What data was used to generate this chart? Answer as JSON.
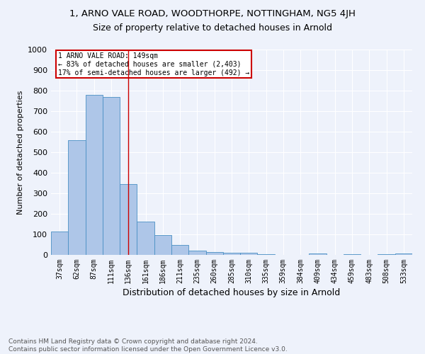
{
  "title1": "1, ARNO VALE ROAD, WOODTHORPE, NOTTINGHAM, NG5 4JH",
  "title2": "Size of property relative to detached houses in Arnold",
  "xlabel": "Distribution of detached houses by size in Arnold",
  "ylabel": "Number of detached properties",
  "footer1": "Contains HM Land Registry data © Crown copyright and database right 2024.",
  "footer2": "Contains public sector information licensed under the Open Government Licence v3.0.",
  "annotation_line1": "1 ARNO VALE ROAD: 149sqm",
  "annotation_line2": "← 83% of detached houses are smaller (2,403)",
  "annotation_line3": "17% of semi-detached houses are larger (492) →",
  "bar_labels": [
    "37sqm",
    "62sqm",
    "87sqm",
    "111sqm",
    "136sqm",
    "161sqm",
    "186sqm",
    "211sqm",
    "235sqm",
    "260sqm",
    "285sqm",
    "310sqm",
    "335sqm",
    "359sqm",
    "384sqm",
    "409sqm",
    "434sqm",
    "459sqm",
    "483sqm",
    "508sqm",
    "533sqm"
  ],
  "bar_values": [
    115,
    560,
    780,
    770,
    345,
    162,
    95,
    50,
    22,
    14,
    12,
    10,
    5,
    0,
    0,
    8,
    0,
    5,
    0,
    5,
    8
  ],
  "bar_color": "#aec6e8",
  "bar_edge_color": "#4a90c4",
  "red_line_x": 4.5,
  "ylim": [
    0,
    1000
  ],
  "yticks": [
    0,
    100,
    200,
    300,
    400,
    500,
    600,
    700,
    800,
    900,
    1000
  ],
  "bg_color": "#eef2fb",
  "grid_color": "#ffffff",
  "annotation_box_color": "#ffffff",
  "annotation_border_color": "#cc0000",
  "title1_fontsize": 9.5,
  "title2_fontsize": 9,
  "xlabel_fontsize": 9,
  "ylabel_fontsize": 8,
  "tick_fontsize": 7,
  "footer_fontsize": 6.5
}
